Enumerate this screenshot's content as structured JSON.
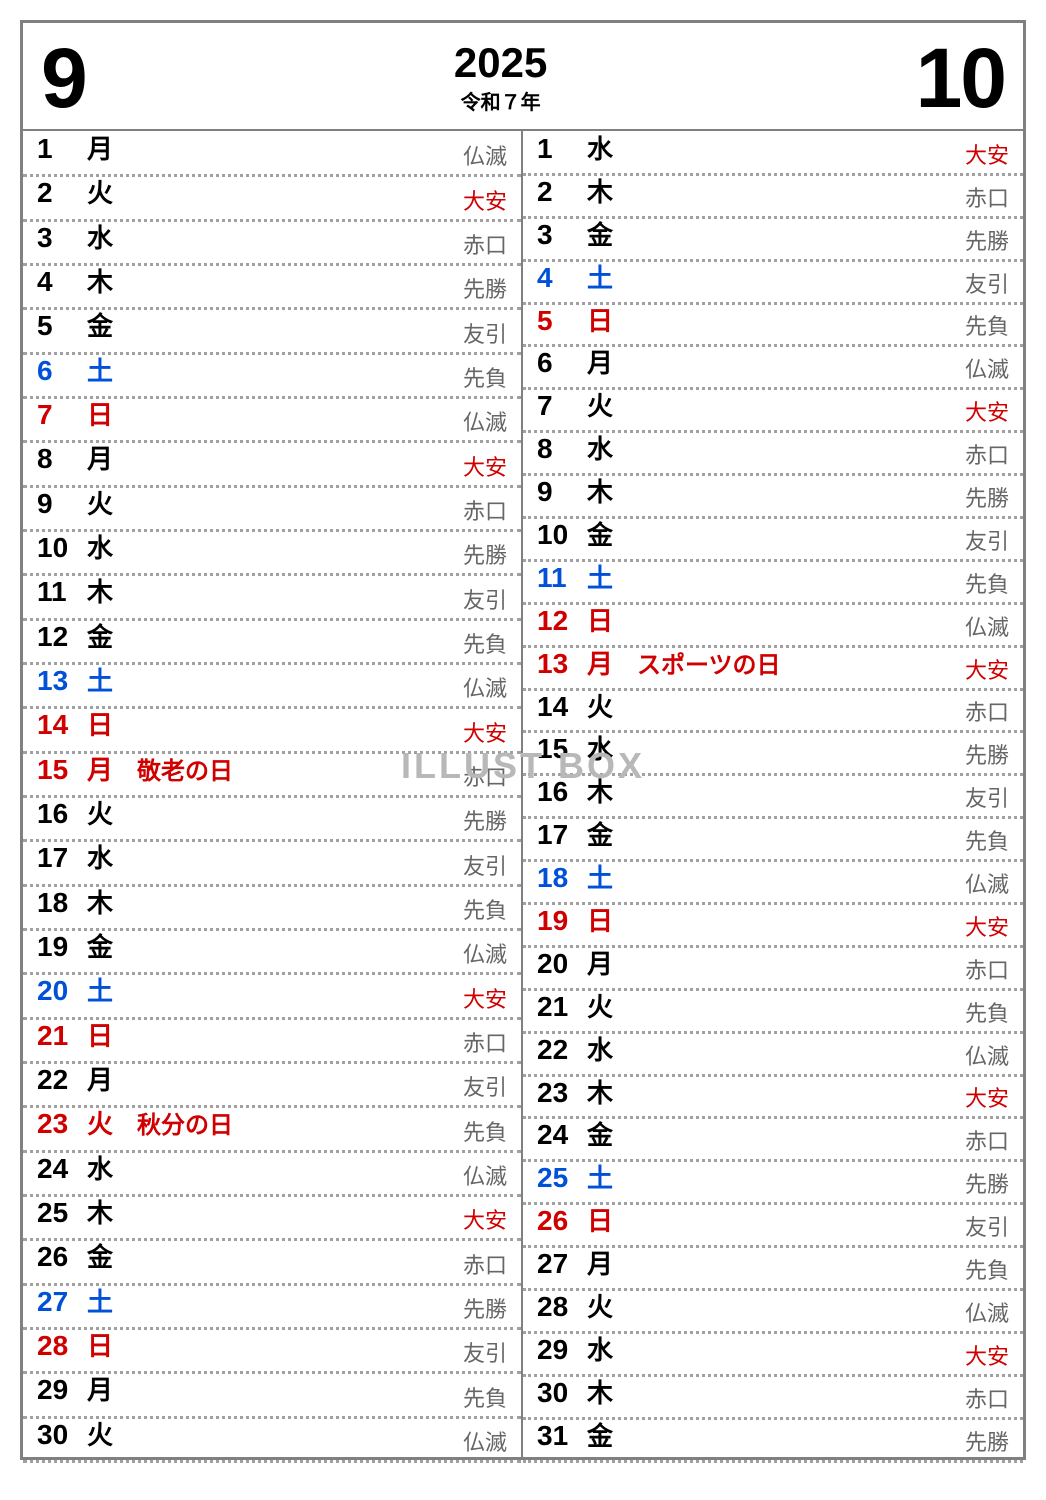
{
  "header": {
    "month_left": "9",
    "year": "2025",
    "era": "令和７年",
    "month_right": "10"
  },
  "watermark": "ILLUST BOX",
  "colors": {
    "black": "#000000",
    "blue": "#0050d8",
    "red": "#d00000",
    "gray": "#666666",
    "border": "#808080",
    "dotted": "#a0a0a0"
  },
  "left_month": {
    "days": [
      {
        "num": "1",
        "week": "月",
        "color": "black",
        "holiday": "",
        "rokuyo": "仏滅",
        "rokuyo_red": false
      },
      {
        "num": "2",
        "week": "火",
        "color": "black",
        "holiday": "",
        "rokuyo": "大安",
        "rokuyo_red": true
      },
      {
        "num": "3",
        "week": "水",
        "color": "black",
        "holiday": "",
        "rokuyo": "赤口",
        "rokuyo_red": false
      },
      {
        "num": "4",
        "week": "木",
        "color": "black",
        "holiday": "",
        "rokuyo": "先勝",
        "rokuyo_red": false
      },
      {
        "num": "5",
        "week": "金",
        "color": "black",
        "holiday": "",
        "rokuyo": "友引",
        "rokuyo_red": false
      },
      {
        "num": "6",
        "week": "土",
        "color": "blue",
        "holiday": "",
        "rokuyo": "先負",
        "rokuyo_red": false
      },
      {
        "num": "7",
        "week": "日",
        "color": "red",
        "holiday": "",
        "rokuyo": "仏滅",
        "rokuyo_red": false
      },
      {
        "num": "8",
        "week": "月",
        "color": "black",
        "holiday": "",
        "rokuyo": "大安",
        "rokuyo_red": true
      },
      {
        "num": "9",
        "week": "火",
        "color": "black",
        "holiday": "",
        "rokuyo": "赤口",
        "rokuyo_red": false
      },
      {
        "num": "10",
        "week": "水",
        "color": "black",
        "holiday": "",
        "rokuyo": "先勝",
        "rokuyo_red": false
      },
      {
        "num": "11",
        "week": "木",
        "color": "black",
        "holiday": "",
        "rokuyo": "友引",
        "rokuyo_red": false
      },
      {
        "num": "12",
        "week": "金",
        "color": "black",
        "holiday": "",
        "rokuyo": "先負",
        "rokuyo_red": false
      },
      {
        "num": "13",
        "week": "土",
        "color": "blue",
        "holiday": "",
        "rokuyo": "仏滅",
        "rokuyo_red": false
      },
      {
        "num": "14",
        "week": "日",
        "color": "red",
        "holiday": "",
        "rokuyo": "大安",
        "rokuyo_red": true
      },
      {
        "num": "15",
        "week": "月",
        "color": "red",
        "holiday": "敬老の日",
        "rokuyo": "赤口",
        "rokuyo_red": false
      },
      {
        "num": "16",
        "week": "火",
        "color": "black",
        "holiday": "",
        "rokuyo": "先勝",
        "rokuyo_red": false
      },
      {
        "num": "17",
        "week": "水",
        "color": "black",
        "holiday": "",
        "rokuyo": "友引",
        "rokuyo_red": false
      },
      {
        "num": "18",
        "week": "木",
        "color": "black",
        "holiday": "",
        "rokuyo": "先負",
        "rokuyo_red": false
      },
      {
        "num": "19",
        "week": "金",
        "color": "black",
        "holiday": "",
        "rokuyo": "仏滅",
        "rokuyo_red": false
      },
      {
        "num": "20",
        "week": "土",
        "color": "blue",
        "holiday": "",
        "rokuyo": "大安",
        "rokuyo_red": true
      },
      {
        "num": "21",
        "week": "日",
        "color": "red",
        "holiday": "",
        "rokuyo": "赤口",
        "rokuyo_red": false
      },
      {
        "num": "22",
        "week": "月",
        "color": "black",
        "holiday": "",
        "rokuyo": "友引",
        "rokuyo_red": false
      },
      {
        "num": "23",
        "week": "火",
        "color": "red",
        "holiday": "秋分の日",
        "rokuyo": "先負",
        "rokuyo_red": false
      },
      {
        "num": "24",
        "week": "水",
        "color": "black",
        "holiday": "",
        "rokuyo": "仏滅",
        "rokuyo_red": false
      },
      {
        "num": "25",
        "week": "木",
        "color": "black",
        "holiday": "",
        "rokuyo": "大安",
        "rokuyo_red": true
      },
      {
        "num": "26",
        "week": "金",
        "color": "black",
        "holiday": "",
        "rokuyo": "赤口",
        "rokuyo_red": false
      },
      {
        "num": "27",
        "week": "土",
        "color": "blue",
        "holiday": "",
        "rokuyo": "先勝",
        "rokuyo_red": false
      },
      {
        "num": "28",
        "week": "日",
        "color": "red",
        "holiday": "",
        "rokuyo": "友引",
        "rokuyo_red": false
      },
      {
        "num": "29",
        "week": "月",
        "color": "black",
        "holiday": "",
        "rokuyo": "先負",
        "rokuyo_red": false
      },
      {
        "num": "30",
        "week": "火",
        "color": "black",
        "holiday": "",
        "rokuyo": "仏滅",
        "rokuyo_red": false
      }
    ]
  },
  "right_month": {
    "days": [
      {
        "num": "1",
        "week": "水",
        "color": "black",
        "holiday": "",
        "rokuyo": "大安",
        "rokuyo_red": true
      },
      {
        "num": "2",
        "week": "木",
        "color": "black",
        "holiday": "",
        "rokuyo": "赤口",
        "rokuyo_red": false
      },
      {
        "num": "3",
        "week": "金",
        "color": "black",
        "holiday": "",
        "rokuyo": "先勝",
        "rokuyo_red": false
      },
      {
        "num": "4",
        "week": "土",
        "color": "blue",
        "holiday": "",
        "rokuyo": "友引",
        "rokuyo_red": false
      },
      {
        "num": "5",
        "week": "日",
        "color": "red",
        "holiday": "",
        "rokuyo": "先負",
        "rokuyo_red": false
      },
      {
        "num": "6",
        "week": "月",
        "color": "black",
        "holiday": "",
        "rokuyo": "仏滅",
        "rokuyo_red": false
      },
      {
        "num": "7",
        "week": "火",
        "color": "black",
        "holiday": "",
        "rokuyo": "大安",
        "rokuyo_red": true
      },
      {
        "num": "8",
        "week": "水",
        "color": "black",
        "holiday": "",
        "rokuyo": "赤口",
        "rokuyo_red": false
      },
      {
        "num": "9",
        "week": "木",
        "color": "black",
        "holiday": "",
        "rokuyo": "先勝",
        "rokuyo_red": false
      },
      {
        "num": "10",
        "week": "金",
        "color": "black",
        "holiday": "",
        "rokuyo": "友引",
        "rokuyo_red": false
      },
      {
        "num": "11",
        "week": "土",
        "color": "blue",
        "holiday": "",
        "rokuyo": "先負",
        "rokuyo_red": false
      },
      {
        "num": "12",
        "week": "日",
        "color": "red",
        "holiday": "",
        "rokuyo": "仏滅",
        "rokuyo_red": false
      },
      {
        "num": "13",
        "week": "月",
        "color": "red",
        "holiday": "スポーツの日",
        "rokuyo": "大安",
        "rokuyo_red": true
      },
      {
        "num": "14",
        "week": "火",
        "color": "black",
        "holiday": "",
        "rokuyo": "赤口",
        "rokuyo_red": false
      },
      {
        "num": "15",
        "week": "水",
        "color": "black",
        "holiday": "",
        "rokuyo": "先勝",
        "rokuyo_red": false
      },
      {
        "num": "16",
        "week": "木",
        "color": "black",
        "holiday": "",
        "rokuyo": "友引",
        "rokuyo_red": false
      },
      {
        "num": "17",
        "week": "金",
        "color": "black",
        "holiday": "",
        "rokuyo": "先負",
        "rokuyo_red": false
      },
      {
        "num": "18",
        "week": "土",
        "color": "blue",
        "holiday": "",
        "rokuyo": "仏滅",
        "rokuyo_red": false
      },
      {
        "num": "19",
        "week": "日",
        "color": "red",
        "holiday": "",
        "rokuyo": "大安",
        "rokuyo_red": true
      },
      {
        "num": "20",
        "week": "月",
        "color": "black",
        "holiday": "",
        "rokuyo": "赤口",
        "rokuyo_red": false
      },
      {
        "num": "21",
        "week": "火",
        "color": "black",
        "holiday": "",
        "rokuyo": "先負",
        "rokuyo_red": false
      },
      {
        "num": "22",
        "week": "水",
        "color": "black",
        "holiday": "",
        "rokuyo": "仏滅",
        "rokuyo_red": false
      },
      {
        "num": "23",
        "week": "木",
        "color": "black",
        "holiday": "",
        "rokuyo": "大安",
        "rokuyo_red": true
      },
      {
        "num": "24",
        "week": "金",
        "color": "black",
        "holiday": "",
        "rokuyo": "赤口",
        "rokuyo_red": false
      },
      {
        "num": "25",
        "week": "土",
        "color": "blue",
        "holiday": "",
        "rokuyo": "先勝",
        "rokuyo_red": false
      },
      {
        "num": "26",
        "week": "日",
        "color": "red",
        "holiday": "",
        "rokuyo": "友引",
        "rokuyo_red": false
      },
      {
        "num": "27",
        "week": "月",
        "color": "black",
        "holiday": "",
        "rokuyo": "先負",
        "rokuyo_red": false
      },
      {
        "num": "28",
        "week": "火",
        "color": "black",
        "holiday": "",
        "rokuyo": "仏滅",
        "rokuyo_red": false
      },
      {
        "num": "29",
        "week": "水",
        "color": "black",
        "holiday": "",
        "rokuyo": "大安",
        "rokuyo_red": true
      },
      {
        "num": "30",
        "week": "木",
        "color": "black",
        "holiday": "",
        "rokuyo": "赤口",
        "rokuyo_red": false
      },
      {
        "num": "31",
        "week": "金",
        "color": "black",
        "holiday": "",
        "rokuyo": "先勝",
        "rokuyo_red": false
      }
    ]
  }
}
